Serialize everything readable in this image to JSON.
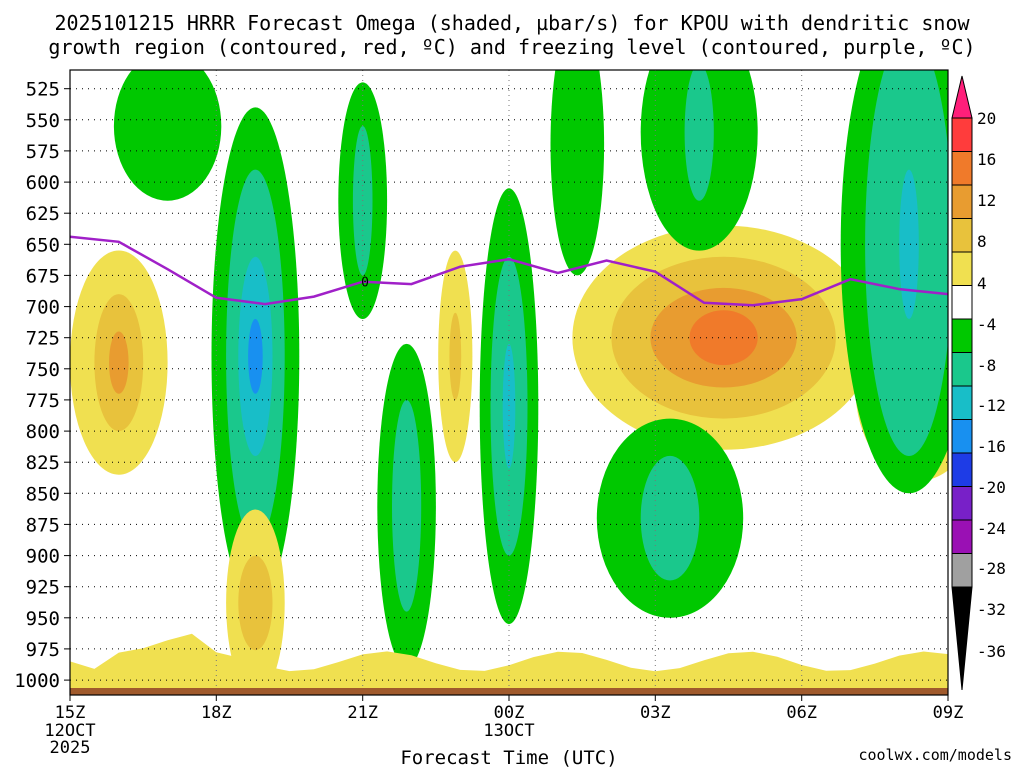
{
  "chart_data": {
    "type": "heatmap",
    "title_line1": "2025101215 HRRR Forecast Omega (shaded, µbar/s) for KPOU with dendritic snow",
    "title_line2": "growth region (contoured, red, ºC) and freezing level (contoured, purple, ºC)",
    "xlabel": "Forecast Time (UTC)",
    "watermark": "coolwx.com/models",
    "x_ticks": [
      {
        "h": 0,
        "label": "15Z",
        "sub1": "12OCT",
        "sub2": "2025"
      },
      {
        "h": 3,
        "label": "18Z"
      },
      {
        "h": 6,
        "label": "21Z"
      },
      {
        "h": 9,
        "label": "00Z",
        "sub1": "13OCT"
      },
      {
        "h": 12,
        "label": "03Z"
      },
      {
        "h": 15,
        "label": "06Z"
      },
      {
        "h": 18,
        "label": "09Z"
      }
    ],
    "y_ticks": [
      "525",
      "550",
      "575",
      "600",
      "625",
      "650",
      "675",
      "700",
      "725",
      "750",
      "775",
      "800",
      "825",
      "850",
      "875",
      "900",
      "925",
      "950",
      "975",
      "1000"
    ],
    "ylim": [
      510,
      1012
    ],
    "xlim": [
      0,
      18
    ],
    "colorbar": {
      "labels": [
        "20",
        "16",
        "12",
        "8",
        "4",
        "-4",
        "-8",
        "-12",
        "-16",
        "-20",
        "-24",
        "-28",
        "-32",
        "-36"
      ],
      "colors": [
        "#ff1f7a",
        "#ff3c3c",
        "#f07a2a",
        "#e89c30",
        "#e8c23c",
        "#f0e050",
        "#ffffff",
        "#00c800",
        "#1ac88c",
        "#18bec8",
        "#1890f0",
        "#1e3ce6",
        "#7820c8",
        "#9a10b4",
        "#a0a0a0",
        "#000000"
      ]
    },
    "freezing_level": {
      "label": "0",
      "color": "#a020c8",
      "hours": [
        0,
        1,
        2,
        3,
        4,
        5,
        6,
        7,
        8,
        9,
        10,
        11,
        12,
        13,
        14,
        15,
        16,
        17,
        18
      ],
      "pressure_hpa": [
        644,
        648,
        670,
        693,
        698,
        692,
        680,
        682,
        668,
        662,
        673,
        663,
        672,
        697,
        699,
        694,
        678,
        686,
        690
      ]
    },
    "omega_features": [
      {
        "shape": "blob",
        "h": 1.0,
        "p": 745,
        "levels": [
          {
            "v": 4,
            "rh": 1.0,
            "rp": 90
          },
          {
            "v": 8,
            "rh": 0.5,
            "rp": 55
          },
          {
            "v": 12,
            "rh": 0.2,
            "rp": 25
          }
        ]
      },
      {
        "shape": "blob",
        "h": 3.8,
        "p": 740,
        "levels": [
          {
            "v": -8,
            "rh": 0.9,
            "rp": 200
          },
          {
            "v": -12,
            "rh": 0.6,
            "rp": 150
          },
          {
            "v": -16,
            "rh": 0.35,
            "rp": 80
          },
          {
            "v": -20,
            "rh": 0.15,
            "rp": 30
          }
        ]
      },
      {
        "shape": "blob",
        "h": 6.0,
        "p": 615,
        "levels": [
          {
            "v": -8,
            "rh": 0.5,
            "rp": 95
          },
          {
            "v": -12,
            "rh": 0.2,
            "rp": 60
          }
        ]
      },
      {
        "shape": "blob",
        "h": 6.9,
        "p": 860,
        "levels": [
          {
            "v": -8,
            "rh": 0.6,
            "rp": 130
          },
          {
            "v": -12,
            "rh": 0.3,
            "rp": 85
          }
        ]
      },
      {
        "shape": "blob",
        "h": 9.0,
        "p": 780,
        "levels": [
          {
            "v": -8,
            "rh": 0.6,
            "rp": 175
          },
          {
            "v": -12,
            "rh": 0.38,
            "rp": 120
          },
          {
            "v": -16,
            "rh": 0.13,
            "rp": 50
          }
        ]
      },
      {
        "shape": "blob",
        "h": 7.9,
        "p": 740,
        "levels": [
          {
            "v": 4,
            "rh": 0.35,
            "rp": 85
          },
          {
            "v": 8,
            "rh": 0.12,
            "rp": 35
          }
        ]
      },
      {
        "shape": "blob",
        "h": 3.8,
        "p": 938,
        "levels": [
          {
            "v": 4,
            "rh": 0.6,
            "rp": 75
          },
          {
            "v": 8,
            "rh": 0.35,
            "rp": 38
          }
        ]
      },
      {
        "shape": "blob",
        "h": 13.4,
        "p": 725,
        "levels": [
          {
            "v": 4,
            "rh": 3.1,
            "rp": 90
          },
          {
            "v": 8,
            "rh": 2.3,
            "rp": 65
          },
          {
            "v": 12,
            "rh": 1.5,
            "rp": 40
          },
          {
            "v": 16,
            "rh": 0.7,
            "rp": 22
          }
        ]
      },
      {
        "shape": "blob",
        "h": 17.4,
        "p": 765,
        "levels": [
          {
            "v": 4,
            "rh": 1.3,
            "rp": 75
          },
          {
            "v": 8,
            "rh": 0.8,
            "rp": 50
          },
          {
            "v": 12,
            "rh": 0.4,
            "rp": 30
          }
        ]
      },
      {
        "shape": "blob",
        "h": 12.3,
        "p": 870,
        "levels": [
          {
            "v": -8,
            "rh": 1.5,
            "rp": 80
          },
          {
            "v": -12,
            "rh": 0.6,
            "rp": 50
          }
        ]
      },
      {
        "shape": "blob",
        "h": 2.0,
        "p": 555,
        "levels": [
          {
            "v": -8,
            "rh": 1.1,
            "rp": 60
          }
        ]
      },
      {
        "shape": "blob",
        "h": 12.9,
        "p": 560,
        "levels": [
          {
            "v": -8,
            "rh": 1.2,
            "rp": 95
          },
          {
            "v": -12,
            "rh": 0.3,
            "rp": 55
          }
        ]
      },
      {
        "shape": "blob",
        "h": 17.2,
        "p": 650,
        "levels": [
          {
            "v": -8,
            "rh": 1.4,
            "rp": 200
          },
          {
            "v": -12,
            "rh": 0.9,
            "rp": 170
          },
          {
            "v": -16,
            "rh": 0.2,
            "rp": 60
          }
        ]
      },
      {
        "shape": "blob",
        "h": 10.4,
        "p": 570,
        "levels": [
          {
            "v": -8,
            "rh": 0.55,
            "rp": 105
          }
        ]
      }
    ]
  }
}
